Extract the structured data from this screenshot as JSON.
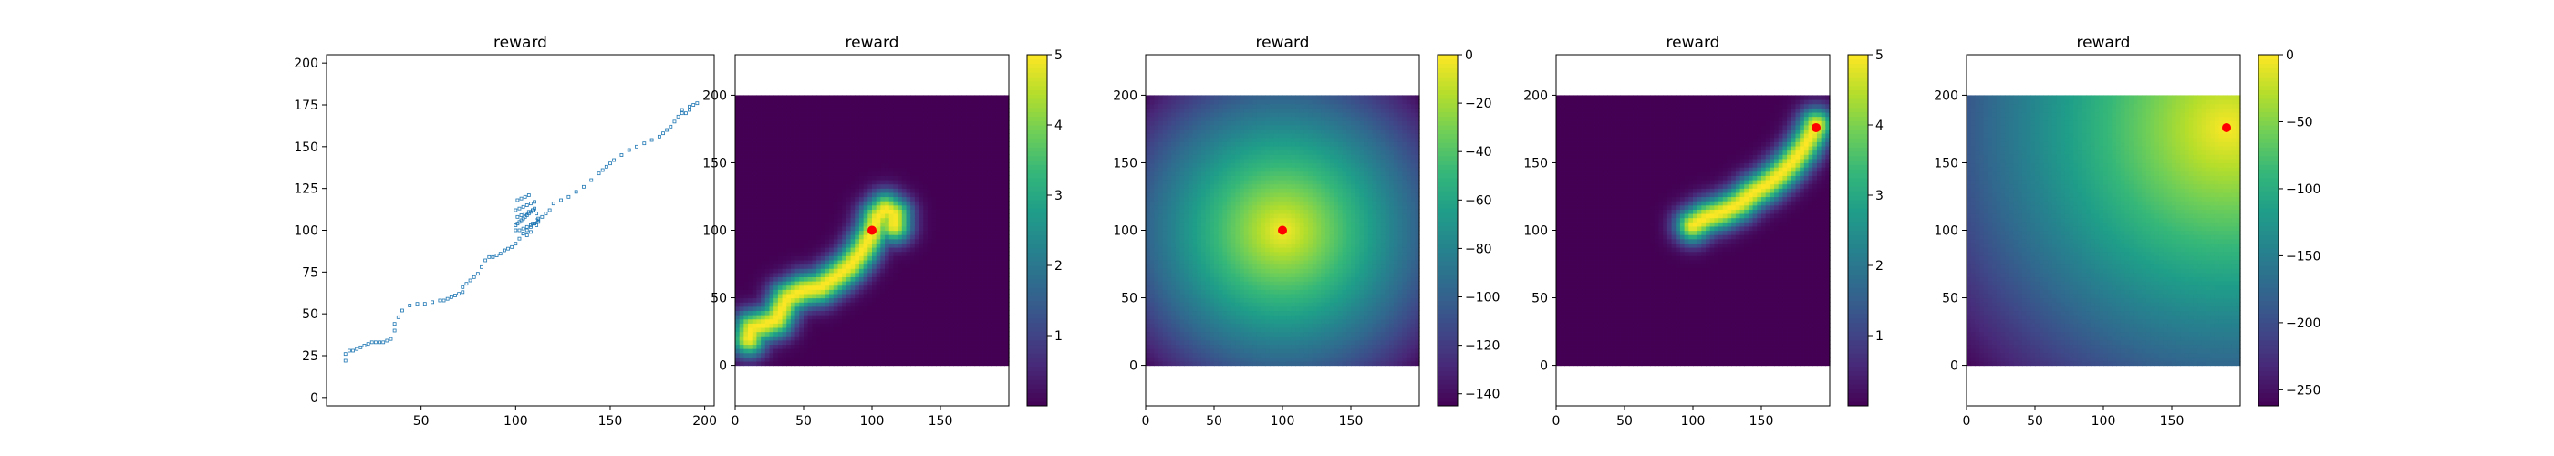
{
  "figure": {
    "panel_count": 5
  },
  "chart_data": [
    {
      "type": "scatter",
      "title": "reward",
      "xlabel": "",
      "ylabel": "",
      "xlim": [
        0,
        205
      ],
      "ylim": [
        -5,
        205
      ],
      "xticks": [
        50,
        100,
        150,
        200
      ],
      "yticks": [
        0,
        25,
        50,
        75,
        100,
        125,
        150,
        175,
        200
      ],
      "grid": false,
      "marker_color": "#1f77b4",
      "series": [
        {
          "x": [
            10,
            10,
            12,
            14,
            16,
            18,
            20,
            22,
            24,
            26,
            28,
            30,
            32,
            34,
            36,
            36,
            38,
            40,
            44,
            48,
            52,
            56,
            60,
            62,
            64,
            66,
            68,
            70,
            72,
            72,
            74,
            76,
            78,
            80,
            82,
            84,
            86,
            88,
            90,
            92,
            94,
            96,
            98,
            100,
            102,
            104,
            106,
            108,
            110,
            112,
            114,
            116,
            118,
            120,
            124,
            128,
            132,
            136,
            140,
            144,
            146,
            148,
            150,
            152,
            156,
            160,
            164,
            168,
            172,
            176,
            178,
            180,
            182,
            184,
            186,
            188,
            188,
            190,
            192,
            192,
            194,
            196
          ],
          "y": [
            22,
            26,
            28,
            28,
            29,
            30,
            31,
            32,
            33,
            33,
            33,
            33,
            34,
            35,
            40,
            44,
            48,
            52,
            55,
            56,
            56,
            57,
            58,
            58,
            59,
            60,
            61,
            62,
            63,
            66,
            68,
            70,
            72,
            74,
            78,
            82,
            84,
            84,
            85,
            86,
            88,
            89,
            90,
            92,
            95,
            98,
            100,
            102,
            104,
            106,
            108,
            110,
            112,
            116,
            118,
            120,
            123,
            126,
            130,
            134,
            136,
            138,
            140,
            142,
            145,
            148,
            150,
            152,
            154,
            156,
            158,
            160,
            162,
            165,
            168,
            170,
            172,
            170,
            172,
            174,
            175,
            176
          ]
        },
        {
          "x": [
            100,
            101,
            102,
            103,
            104,
            105,
            106,
            107,
            108,
            109,
            110,
            111,
            112,
            100,
            102,
            104,
            106,
            108,
            110,
            112,
            101,
            103,
            105,
            107,
            109,
            111,
            100,
            102,
            104,
            106,
            108,
            110,
            101,
            103,
            105,
            107,
            109,
            111,
            104,
            106,
            108
          ],
          "y": [
            103,
            104,
            105,
            106,
            107,
            108,
            109,
            110,
            111,
            112,
            113,
            106,
            107,
            100,
            100,
            101,
            102,
            103,
            104,
            105,
            108,
            109,
            110,
            111,
            112,
            110,
            112,
            113,
            114,
            115,
            116,
            117,
            118,
            119,
            120,
            121,
            104,
            103,
            98,
            97,
            99
          ]
        }
      ]
    },
    {
      "type": "heatmap",
      "title": "reward",
      "xlabel": "",
      "ylabel": "",
      "xlim": [
        0,
        200
      ],
      "ylim": [
        -30,
        230
      ],
      "data_extent": [
        0,
        200,
        0,
        200
      ],
      "xticks": [
        0,
        50,
        100,
        150
      ],
      "yticks": [
        0,
        50,
        100,
        150,
        200
      ],
      "colormap": "viridis",
      "colorbar": {
        "min": 0,
        "max": 5,
        "ticks": [
          1,
          2,
          3,
          4,
          5
        ]
      },
      "field": "path",
      "path": [
        [
          10,
          20
        ],
        [
          12,
          28
        ],
        [
          20,
          30
        ],
        [
          30,
          34
        ],
        [
          38,
          50
        ],
        [
          50,
          56
        ],
        [
          62,
          58
        ],
        [
          74,
          66
        ],
        [
          84,
          74
        ],
        [
          92,
          84
        ],
        [
          100,
          98
        ],
        [
          104,
          110
        ],
        [
          110,
          116
        ],
        [
          116,
          112
        ],
        [
          116,
          104
        ]
      ],
      "path_width": 9,
      "peak_value": 5,
      "marker": {
        "x": 100,
        "y": 100,
        "color": "#ff0000"
      }
    },
    {
      "type": "heatmap",
      "title": "reward",
      "xlabel": "",
      "ylabel": "",
      "xlim": [
        0,
        200
      ],
      "ylim": [
        -30,
        230
      ],
      "data_extent": [
        0,
        200,
        0,
        200
      ],
      "xticks": [
        0,
        50,
        100,
        150
      ],
      "yticks": [
        0,
        50,
        100,
        150,
        200
      ],
      "colormap": "viridis",
      "colorbar": {
        "min": -145,
        "max": 0,
        "ticks": [
          0,
          -20,
          -40,
          -60,
          -80,
          -100,
          -120,
          -140
        ]
      },
      "field": "negative_distance",
      "center": [
        100,
        100
      ],
      "marker": {
        "x": 100,
        "y": 100,
        "color": "#ff0000"
      }
    },
    {
      "type": "heatmap",
      "title": "reward",
      "xlabel": "",
      "ylabel": "",
      "xlim": [
        0,
        200
      ],
      "ylim": [
        -30,
        230
      ],
      "data_extent": [
        0,
        200,
        0,
        200
      ],
      "xticks": [
        0,
        50,
        100,
        150
      ],
      "yticks": [
        0,
        50,
        100,
        150,
        200
      ],
      "colormap": "viridis",
      "colorbar": {
        "min": 0,
        "max": 5,
        "ticks": [
          1,
          2,
          3,
          4,
          5
        ]
      },
      "field": "path",
      "path": [
        [
          100,
          104
        ],
        [
          110,
          110
        ],
        [
          122,
          114
        ],
        [
          134,
          120
        ],
        [
          144,
          128
        ],
        [
          154,
          134
        ],
        [
          164,
          142
        ],
        [
          172,
          150
        ],
        [
          180,
          160
        ],
        [
          186,
          170
        ],
        [
          190,
          178
        ]
      ],
      "path_width": 9,
      "peak_value": 5,
      "marker": {
        "x": 190,
        "y": 176,
        "color": "#ff0000"
      }
    },
    {
      "type": "heatmap",
      "title": "reward",
      "xlabel": "",
      "ylabel": "",
      "xlim": [
        0,
        200
      ],
      "ylim": [
        -30,
        230
      ],
      "data_extent": [
        0,
        200,
        0,
        200
      ],
      "xticks": [
        0,
        50,
        100,
        150
      ],
      "yticks": [
        0,
        50,
        100,
        150,
        200
      ],
      "colormap": "viridis",
      "colorbar": {
        "min": -262,
        "max": 0,
        "ticks": [
          0,
          -50,
          -100,
          -150,
          -200,
          -250
        ]
      },
      "field": "negative_distance",
      "center": [
        190,
        176
      ],
      "marker": {
        "x": 190,
        "y": 176,
        "color": "#ff0000"
      }
    }
  ]
}
